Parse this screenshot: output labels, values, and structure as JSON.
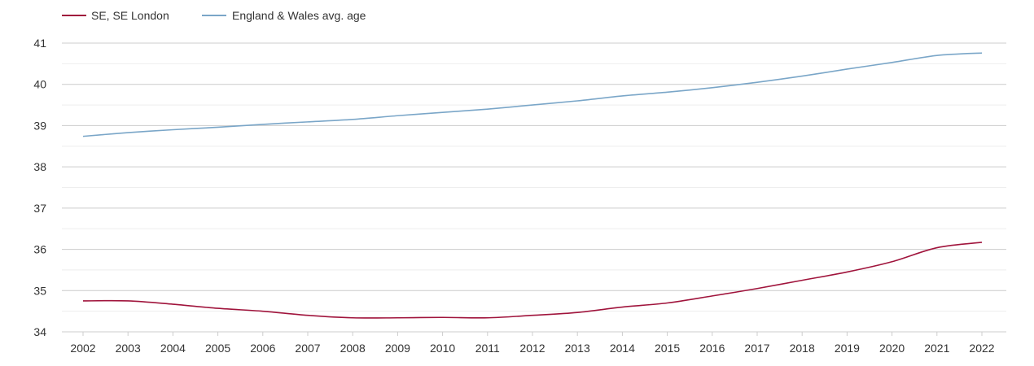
{
  "chart_data": {
    "type": "line",
    "title": "",
    "xlabel": "",
    "ylabel": "",
    "x": [
      "2002",
      "2003",
      "2004",
      "2005",
      "2006",
      "2007",
      "2008",
      "2009",
      "2010",
      "2011",
      "2012",
      "2013",
      "2014",
      "2015",
      "2016",
      "2017",
      "2018",
      "2019",
      "2020",
      "2021",
      "2022"
    ],
    "ylim": [
      34,
      41
    ],
    "yticks": [
      "34",
      "35",
      "36",
      "37",
      "38",
      "39",
      "40",
      "41"
    ],
    "grid": true,
    "legend_position": "top-left",
    "series": [
      {
        "name": "SE, SE London",
        "color": "#a0143c",
        "values": [
          34.75,
          34.75,
          34.67,
          34.57,
          34.5,
          34.4,
          34.34,
          34.34,
          34.35,
          34.34,
          34.4,
          34.47,
          34.6,
          34.7,
          34.87,
          35.05,
          35.25,
          35.45,
          35.7,
          36.04,
          36.17
        ]
      },
      {
        "name": "England & Wales avg. age",
        "color": "#7aa6c8",
        "values": [
          38.74,
          38.83,
          38.9,
          38.96,
          39.03,
          39.09,
          39.15,
          39.24,
          39.32,
          39.4,
          39.5,
          39.6,
          39.72,
          39.81,
          39.92,
          40.05,
          40.2,
          40.37,
          40.53,
          40.7,
          40.76
        ]
      }
    ]
  }
}
